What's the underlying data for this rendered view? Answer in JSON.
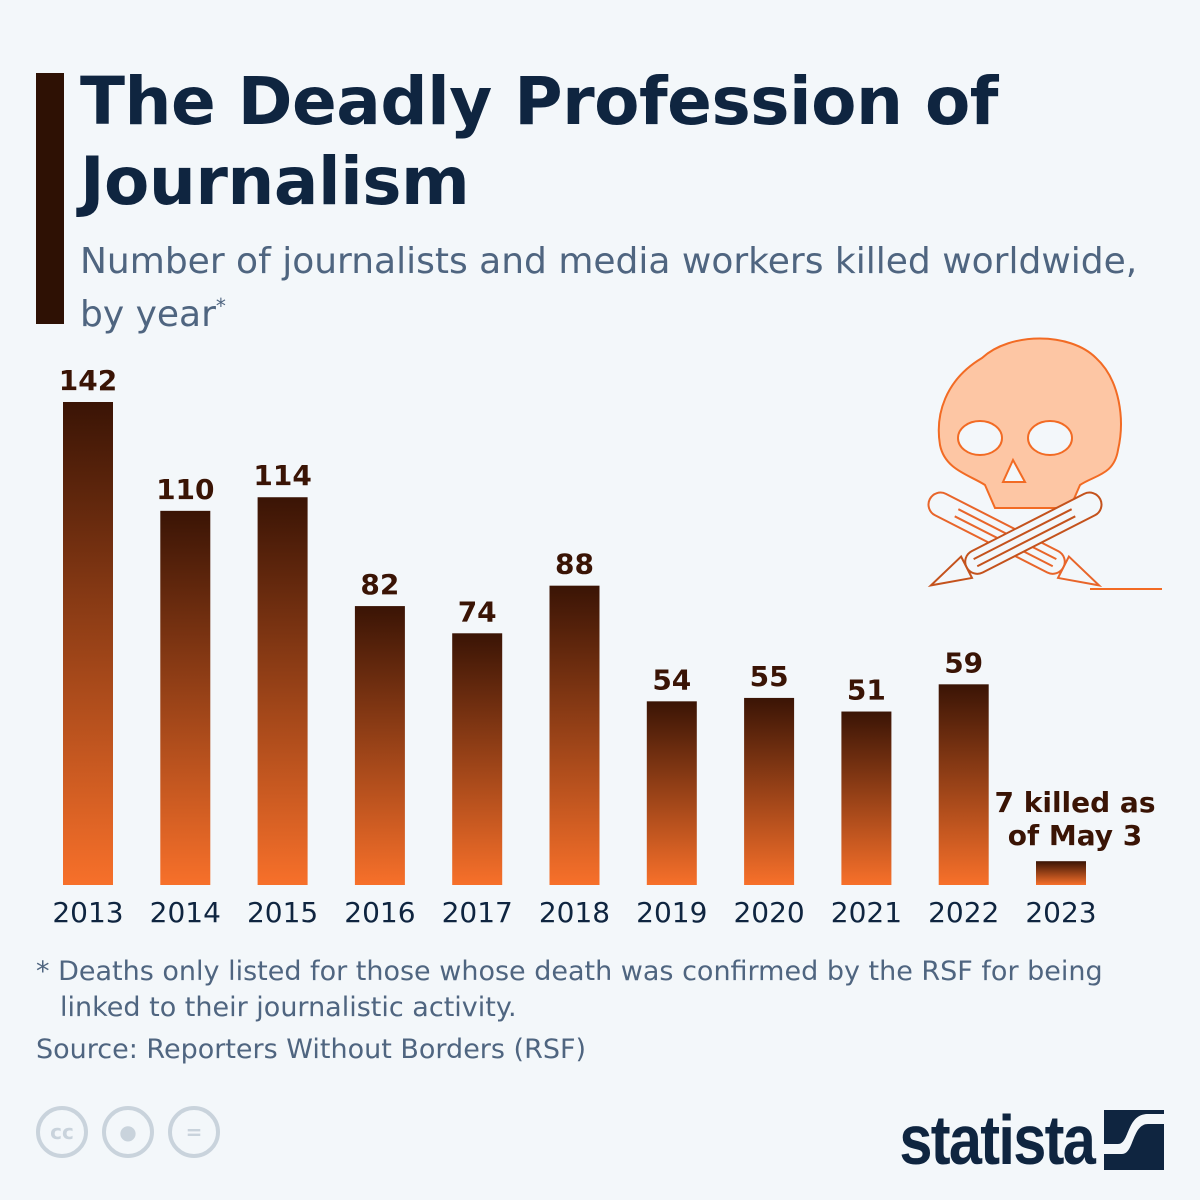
{
  "header": {
    "title": "The Deadly Profession of Journalism",
    "subtitle": "Number of journalists and media workers killed worldwide, by year",
    "subtitle_marker": "*"
  },
  "chart_data": {
    "type": "bar",
    "title": "The Deadly Profession of Journalism",
    "categories": [
      "2013",
      "2014",
      "2015",
      "2016",
      "2017",
      "2018",
      "2019",
      "2020",
      "2021",
      "2022",
      "2023"
    ],
    "values": [
      142,
      110,
      114,
      82,
      74,
      88,
      54,
      55,
      51,
      59,
      7
    ],
    "data_labels": [
      "142",
      "110",
      "114",
      "82",
      "74",
      "88",
      "54",
      "55",
      "51",
      "59",
      ""
    ],
    "annotation_2023": [
      "7 killed as",
      "of May 3"
    ],
    "ylim": [
      0,
      142
    ],
    "grid": false,
    "colors": {
      "bar_top": "#3a1405",
      "bar_bottom": "#f7702a",
      "label": "#3a1405"
    }
  },
  "footnote": "* Deaths only listed for those whose death was confirmed by the RSF for being linked to their journalistic activity.",
  "source": "Source: Reporters Without Borders (RSF)",
  "license_icons": [
    "cc-icon",
    "attribution-icon",
    "no-derivatives-icon"
  ],
  "license_labels": {
    "cc": "cc",
    "eq": "="
  },
  "brand": "statista"
}
